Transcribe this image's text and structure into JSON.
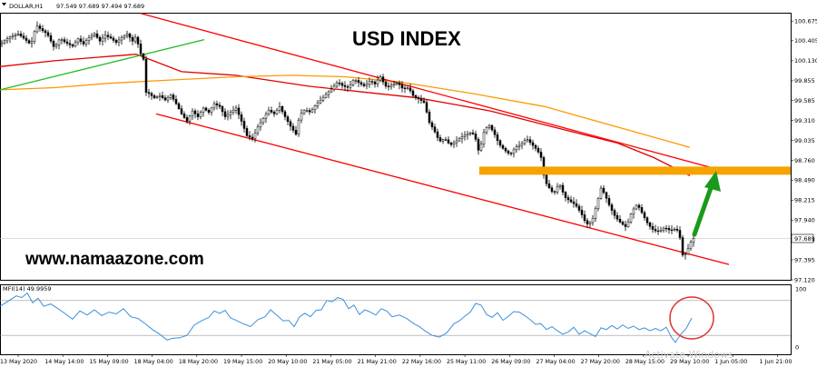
{
  "header": {
    "symbol": "DOLLAR,H1",
    "ohlc": "97.549 97.689 97.494 97.689"
  },
  "title": "USD INDEX",
  "website": "www.namaazone.com",
  "watermark": "Activate Windows",
  "colors": {
    "candle": "#000000",
    "channel": "#ff0000",
    "ma_red": "#e00000",
    "ma_orange": "#ff9900",
    "trend_green": "#22bb22",
    "support": "#f5a300",
    "arrow": "#1a9a1a",
    "mfi_line": "#3a8fdc",
    "circle": "#e03030",
    "grid": "#c8c8c8"
  },
  "chart_data": [
    {
      "type": "candlestick",
      "symbol": "DOLLAR",
      "timeframe": "H1",
      "last_price": 97.689,
      "price_label": "97.689",
      "y_ticks": [
        "100.675",
        "100.405",
        "100.130",
        "99.855",
        "99.585",
        "99.310",
        "99.035",
        "98.760",
        "98.490",
        "98.215",
        "97.940",
        "97.665",
        "97.395",
        "97.120"
      ],
      "ylim": [
        97.12,
        100.79
      ],
      "x_tick_labels": [
        "13 May 2020",
        "14 May 14:00",
        "15 May 09:00",
        "18 May 04:00",
        "18 May 20:00",
        "19 May 15:00",
        "20 May 10:00",
        "21 May 05:00",
        "21 May 21:00",
        "22 May 16:00",
        "25 May 11:00",
        "26 May 09:00",
        "27 May 04:00",
        "27 May 20:00",
        "28 May 15:00",
        "29 May 10:00",
        "1 Jun 05:00",
        "1 Jun 21:00"
      ],
      "close_path": [
        [
          0,
          100.36
        ],
        [
          10,
          100.45
        ],
        [
          20,
          100.5
        ],
        [
          28,
          100.42
        ],
        [
          34,
          100.35
        ],
        [
          40,
          100.62
        ],
        [
          46,
          100.55
        ],
        [
          52,
          100.5
        ],
        [
          60,
          100.3
        ],
        [
          66,
          100.44
        ],
        [
          72,
          100.38
        ],
        [
          80,
          100.33
        ],
        [
          86,
          100.43
        ],
        [
          92,
          100.36
        ],
        [
          98,
          100.45
        ],
        [
          104,
          100.5
        ],
        [
          110,
          100.4
        ],
        [
          116,
          100.48
        ],
        [
          122,
          100.44
        ],
        [
          128,
          100.38
        ],
        [
          134,
          100.45
        ],
        [
          140,
          100.5
        ],
        [
          146,
          100.4
        ],
        [
          150,
          100.47
        ],
        [
          154,
          100.25
        ],
        [
          158,
          100.15
        ],
        [
          160,
          99.7
        ],
        [
          164,
          99.68
        ],
        [
          170,
          99.62
        ],
        [
          176,
          99.65
        ],
        [
          182,
          99.59
        ],
        [
          188,
          99.66
        ],
        [
          194,
          99.54
        ],
        [
          200,
          99.4
        ],
        [
          206,
          99.3
        ],
        [
          212,
          99.44
        ],
        [
          218,
          99.36
        ],
        [
          224,
          99.48
        ],
        [
          230,
          99.42
        ],
        [
          236,
          99.54
        ],
        [
          242,
          99.5
        ],
        [
          248,
          99.36
        ],
        [
          254,
          99.42
        ],
        [
          260,
          99.48
        ],
        [
          266,
          99.3
        ],
        [
          272,
          99.1
        ],
        [
          278,
          99.06
        ],
        [
          284,
          99.22
        ],
        [
          290,
          99.34
        ],
        [
          296,
          99.45
        ],
        [
          302,
          99.4
        ],
        [
          308,
          99.5
        ],
        [
          314,
          99.36
        ],
        [
          320,
          99.23
        ],
        [
          326,
          99.12
        ],
        [
          330,
          99.38
        ],
        [
          336,
          99.46
        ],
        [
          342,
          99.42
        ],
        [
          348,
          99.53
        ],
        [
          354,
          99.6
        ],
        [
          360,
          99.68
        ],
        [
          366,
          99.75
        ],
        [
          372,
          99.84
        ],
        [
          378,
          99.78
        ],
        [
          384,
          99.76
        ],
        [
          390,
          99.88
        ],
        [
          396,
          99.82
        ],
        [
          402,
          99.78
        ],
        [
          408,
          99.86
        ],
        [
          414,
          99.8
        ],
        [
          418,
          99.93
        ],
        [
          422,
          99.84
        ],
        [
          426,
          99.76
        ],
        [
          432,
          99.8
        ],
        [
          438,
          99.83
        ],
        [
          444,
          99.74
        ],
        [
          450,
          99.76
        ],
        [
          456,
          99.63
        ],
        [
          462,
          99.6
        ],
        [
          468,
          99.55
        ],
        [
          472,
          99.3
        ],
        [
          478,
          99.18
        ],
        [
          484,
          99.02
        ],
        [
          490,
          99.06
        ],
        [
          496,
          98.97
        ],
        [
          502,
          99.02
        ],
        [
          508,
          99.08
        ],
        [
          514,
          99.12
        ],
        [
          520,
          99.15
        ],
        [
          524,
          99.05
        ],
        [
          528,
          98.85
        ],
        [
          532,
          99.12
        ],
        [
          538,
          99.26
        ],
        [
          544,
          99.14
        ],
        [
          550,
          98.98
        ],
        [
          556,
          98.9
        ],
        [
          562,
          98.84
        ],
        [
          568,
          98.94
        ],
        [
          574,
          98.98
        ],
        [
          580,
          99.06
        ],
        [
          586,
          98.98
        ],
        [
          592,
          98.9
        ],
        [
          596,
          98.8
        ],
        [
          600,
          98.48
        ],
        [
          604,
          98.4
        ],
        [
          610,
          98.3
        ],
        [
          616,
          98.45
        ],
        [
          622,
          98.26
        ],
        [
          628,
          98.2
        ],
        [
          634,
          98.15
        ],
        [
          640,
          98.04
        ],
        [
          646,
          97.88
        ],
        [
          652,
          97.92
        ],
        [
          656,
          98.1
        ],
        [
          662,
          98.38
        ],
        [
          666,
          98.3
        ],
        [
          672,
          98.12
        ],
        [
          678,
          97.98
        ],
        [
          684,
          97.9
        ],
        [
          690,
          97.84
        ],
        [
          696,
          98.06
        ],
        [
          702,
          98.16
        ],
        [
          708,
          98.02
        ],
        [
          714,
          97.88
        ],
        [
          720,
          97.8
        ],
        [
          726,
          97.78
        ],
        [
          732,
          97.84
        ],
        [
          738,
          97.8
        ],
        [
          744,
          97.82
        ],
        [
          748,
          97.78
        ],
        [
          752,
          97.46
        ],
        [
          756,
          97.48
        ],
        [
          760,
          97.62
        ],
        [
          764,
          97.69
        ]
      ],
      "moving_averages": [
        {
          "color": "red",
          "values": [
            [
              0,
              100.05
            ],
            [
              60,
              100.13
            ],
            [
              110,
              100.18
            ],
            [
              150,
              100.22
            ],
            [
              200,
              99.98
            ],
            [
              260,
              99.93
            ],
            [
              340,
              99.78
            ],
            [
              400,
              99.7
            ],
            [
              460,
              99.62
            ],
            [
              540,
              99.44
            ],
            [
              600,
              99.25
            ],
            [
              680,
              99.0
            ],
            [
              720,
              98.8
            ],
            [
              760,
              98.55
            ]
          ]
        },
        {
          "color": "orange",
          "values": [
            [
              0,
              99.73
            ],
            [
              60,
              99.76
            ],
            [
              120,
              99.82
            ],
            [
              180,
              99.86
            ],
            [
              260,
              99.91
            ],
            [
              320,
              99.93
            ],
            [
              380,
              99.91
            ],
            [
              440,
              99.84
            ],
            [
              520,
              99.68
            ],
            [
              600,
              99.5
            ],
            [
              680,
              99.22
            ],
            [
              720,
              99.08
            ],
            [
              760,
              98.94
            ]
          ]
        }
      ],
      "channel_lines": [
        {
          "color": "red",
          "from": [
            155,
            100.78
          ],
          "to": [
            790,
            98.64
          ]
        },
        {
          "color": "red",
          "from": [
            172,
            99.4
          ],
          "to": [
            803,
            97.33
          ]
        }
      ],
      "trend_lines": [
        {
          "color": "green",
          "from": [
            0,
            99.73
          ],
          "to": [
            225,
            100.42
          ]
        }
      ],
      "support_level": 98.62,
      "annotation": "upward arrow from recent low toward support"
    },
    {
      "type": "line",
      "indicator": "MFI",
      "period": 14,
      "label": "MFI(14) 49.9959",
      "y_ticks": [
        "100",
        "0"
      ],
      "ylim": [
        0,
        100
      ],
      "levels": [
        80,
        20
      ],
      "values": [
        [
          0,
          70
        ],
        [
          10,
          80
        ],
        [
          18,
          88
        ],
        [
          24,
          85
        ],
        [
          30,
          93
        ],
        [
          36,
          76
        ],
        [
          42,
          84
        ],
        [
          48,
          70
        ],
        [
          56,
          74
        ],
        [
          64,
          66
        ],
        [
          72,
          57
        ],
        [
          80,
          48
        ],
        [
          88,
          62
        ],
        [
          96,
          55
        ],
        [
          104,
          64
        ],
        [
          112,
          54
        ],
        [
          120,
          60
        ],
        [
          128,
          57
        ],
        [
          136,
          66
        ],
        [
          144,
          52
        ],
        [
          152,
          49
        ],
        [
          160,
          40
        ],
        [
          168,
          30
        ],
        [
          176,
          22
        ],
        [
          184,
          12
        ],
        [
          190,
          15
        ],
        [
          198,
          16
        ],
        [
          206,
          20
        ],
        [
          214,
          38
        ],
        [
          222,
          45
        ],
        [
          230,
          51
        ],
        [
          236,
          62
        ],
        [
          242,
          58
        ],
        [
          248,
          63
        ],
        [
          254,
          50
        ],
        [
          260,
          46
        ],
        [
          268,
          40
        ],
        [
          276,
          35
        ],
        [
          284,
          47
        ],
        [
          292,
          52
        ],
        [
          298,
          64
        ],
        [
          304,
          56
        ],
        [
          312,
          45
        ],
        [
          318,
          46
        ],
        [
          324,
          35
        ],
        [
          330,
          52
        ],
        [
          336,
          58
        ],
        [
          342,
          52
        ],
        [
          348,
          63
        ],
        [
          354,
          64
        ],
        [
          360,
          80
        ],
        [
          366,
          78
        ],
        [
          372,
          85
        ],
        [
          378,
          82
        ],
        [
          384,
          66
        ],
        [
          390,
          72
        ],
        [
          396,
          56
        ],
        [
          402,
          64
        ],
        [
          408,
          60
        ],
        [
          414,
          55
        ],
        [
          420,
          66
        ],
        [
          426,
          62
        ],
        [
          432,
          52
        ],
        [
          440,
          55
        ],
        [
          448,
          49
        ],
        [
          456,
          40
        ],
        [
          462,
          35
        ],
        [
          468,
          28
        ],
        [
          476,
          20
        ],
        [
          484,
          17
        ],
        [
          492,
          24
        ],
        [
          500,
          40
        ],
        [
          506,
          45
        ],
        [
          512,
          53
        ],
        [
          518,
          60
        ],
        [
          524,
          75
        ],
        [
          530,
          72
        ],
        [
          536,
          56
        ],
        [
          542,
          51
        ],
        [
          548,
          59
        ],
        [
          554,
          46
        ],
        [
          560,
          53
        ],
        [
          566,
          61
        ],
        [
          572,
          60
        ],
        [
          578,
          54
        ],
        [
          584,
          47
        ],
        [
          590,
          39
        ],
        [
          596,
          40
        ],
        [
          602,
          30
        ],
        [
          608,
          35
        ],
        [
          614,
          28
        ],
        [
          620,
          22
        ],
        [
          626,
          26
        ],
        [
          632,
          34
        ],
        [
          638,
          22
        ],
        [
          644,
          28
        ],
        [
          650,
          23
        ],
        [
          656,
          18
        ],
        [
          662,
          33
        ],
        [
          668,
          30
        ],
        [
          674,
          37
        ],
        [
          680,
          31
        ],
        [
          686,
          38
        ],
        [
          692,
          32
        ],
        [
          698,
          36
        ],
        [
          704,
          30
        ],
        [
          710,
          33
        ],
        [
          716,
          28
        ],
        [
          722,
          32
        ],
        [
          728,
          28
        ],
        [
          734,
          34
        ],
        [
          740,
          16
        ],
        [
          744,
          8
        ],
        [
          750,
          22
        ],
        [
          756,
          32
        ],
        [
          762,
          50
        ]
      ]
    }
  ]
}
